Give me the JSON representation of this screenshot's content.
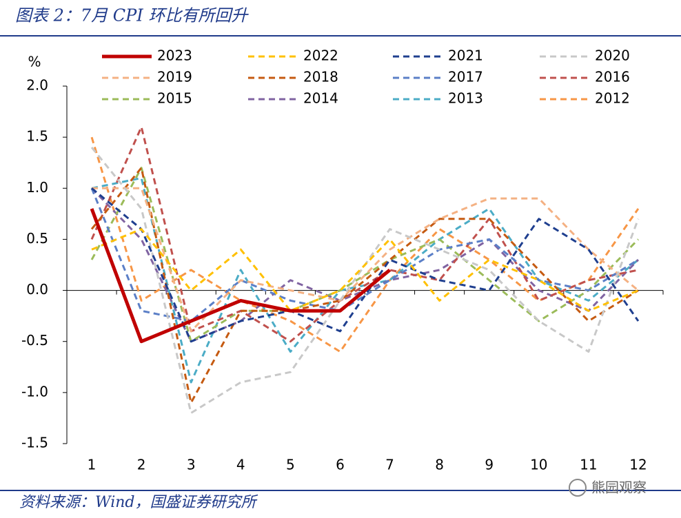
{
  "chart_data": {
    "type": "line",
    "title": "图表 2：7月 CPI 环比有所回升",
    "y_label": "%",
    "source": "资料来源：Wind，国盛证券研究所",
    "watermark": "熊园观察",
    "categories": [
      "1",
      "2",
      "3",
      "4",
      "5",
      "6",
      "7",
      "8",
      "9",
      "10",
      "11",
      "12"
    ],
    "ylim": [
      -1.5,
      2.0
    ],
    "yticks": [
      {
        "value": -1.5,
        "label": "-1.5"
      },
      {
        "value": -1,
        "label": "-1.0"
      },
      -0.5,
      {
        "value": 0,
        "label": "0.0"
      },
      0.5,
      {
        "value": 1,
        "label": "1.0"
      },
      1.5,
      {
        "value": 2,
        "label": "2.0"
      }
    ],
    "series": [
      {
        "name": "2023",
        "color": "#c00000",
        "style": "solid",
        "values": [
          0.8,
          -0.5,
          -0.3,
          -0.1,
          -0.2,
          -0.2,
          0.2,
          null,
          null,
          null,
          null,
          null
        ]
      },
      {
        "name": "2022",
        "color": "#ffc000",
        "style": "dashed",
        "values": [
          0.4,
          0.6,
          0.0,
          0.4,
          -0.2,
          0.0,
          0.5,
          -0.1,
          0.3,
          0.1,
          -0.2,
          0.0
        ]
      },
      {
        "name": "2021",
        "color": "#1f3f8f",
        "style": "dashed",
        "values": [
          1.0,
          0.6,
          -0.5,
          -0.3,
          -0.2,
          -0.4,
          0.3,
          0.1,
          0.0,
          0.7,
          0.4,
          -0.3
        ]
      },
      {
        "name": "2020",
        "color": "#c8c8c8",
        "style": "dashed",
        "values": [
          1.4,
          0.8,
          -1.2,
          -0.9,
          -0.8,
          -0.1,
          0.6,
          0.4,
          0.2,
          -0.3,
          -0.6,
          0.7
        ]
      },
      {
        "name": "2019",
        "color": "#f4b183",
        "style": "dashed",
        "values": [
          1.0,
          1.0,
          -0.4,
          0.1,
          0.0,
          -0.1,
          0.4,
          0.7,
          0.9,
          0.9,
          0.4,
          0.0
        ]
      },
      {
        "name": "2018",
        "color": "#c55a11",
        "style": "dashed",
        "values": [
          0.6,
          1.2,
          -1.1,
          -0.2,
          -0.2,
          -0.1,
          0.3,
          0.7,
          0.7,
          0.2,
          -0.3,
          0.0
        ]
      },
      {
        "name": "2017",
        "color": "#5b7fc7",
        "style": "dashed",
        "values": [
          1.0,
          -0.2,
          -0.3,
          0.1,
          -0.1,
          -0.2,
          0.1,
          0.4,
          0.5,
          0.1,
          0.0,
          0.3
        ]
      },
      {
        "name": "2016",
        "color": "#c0504d",
        "style": "dashed",
        "values": [
          0.5,
          1.6,
          -0.4,
          -0.2,
          -0.5,
          -0.1,
          0.2,
          0.1,
          0.7,
          -0.1,
          0.1,
          0.2
        ]
      },
      {
        "name": "2015",
        "color": "#9bbb59",
        "style": "dashed",
        "values": [
          0.3,
          1.2,
          -0.5,
          -0.2,
          -0.2,
          0.0,
          0.3,
          0.5,
          0.1,
          -0.3,
          0.0,
          0.5
        ]
      },
      {
        "name": "2014",
        "color": "#8064a2",
        "style": "dashed",
        "values": [
          1.0,
          0.5,
          -0.5,
          -0.3,
          0.1,
          -0.1,
          0.1,
          0.2,
          0.5,
          0.0,
          -0.2,
          0.3
        ]
      },
      {
        "name": "2013",
        "color": "#4bacc6",
        "style": "dashed",
        "values": [
          1.0,
          1.1,
          -0.9,
          0.2,
          -0.6,
          0.0,
          0.1,
          0.5,
          0.8,
          0.1,
          -0.1,
          0.3
        ]
      },
      {
        "name": "2012",
        "color": "#f79646",
        "style": "dashed",
        "values": [
          1.5,
          -0.1,
          0.2,
          -0.1,
          -0.3,
          -0.6,
          0.1,
          0.6,
          0.3,
          -0.1,
          0.1,
          0.8
        ]
      }
    ]
  }
}
